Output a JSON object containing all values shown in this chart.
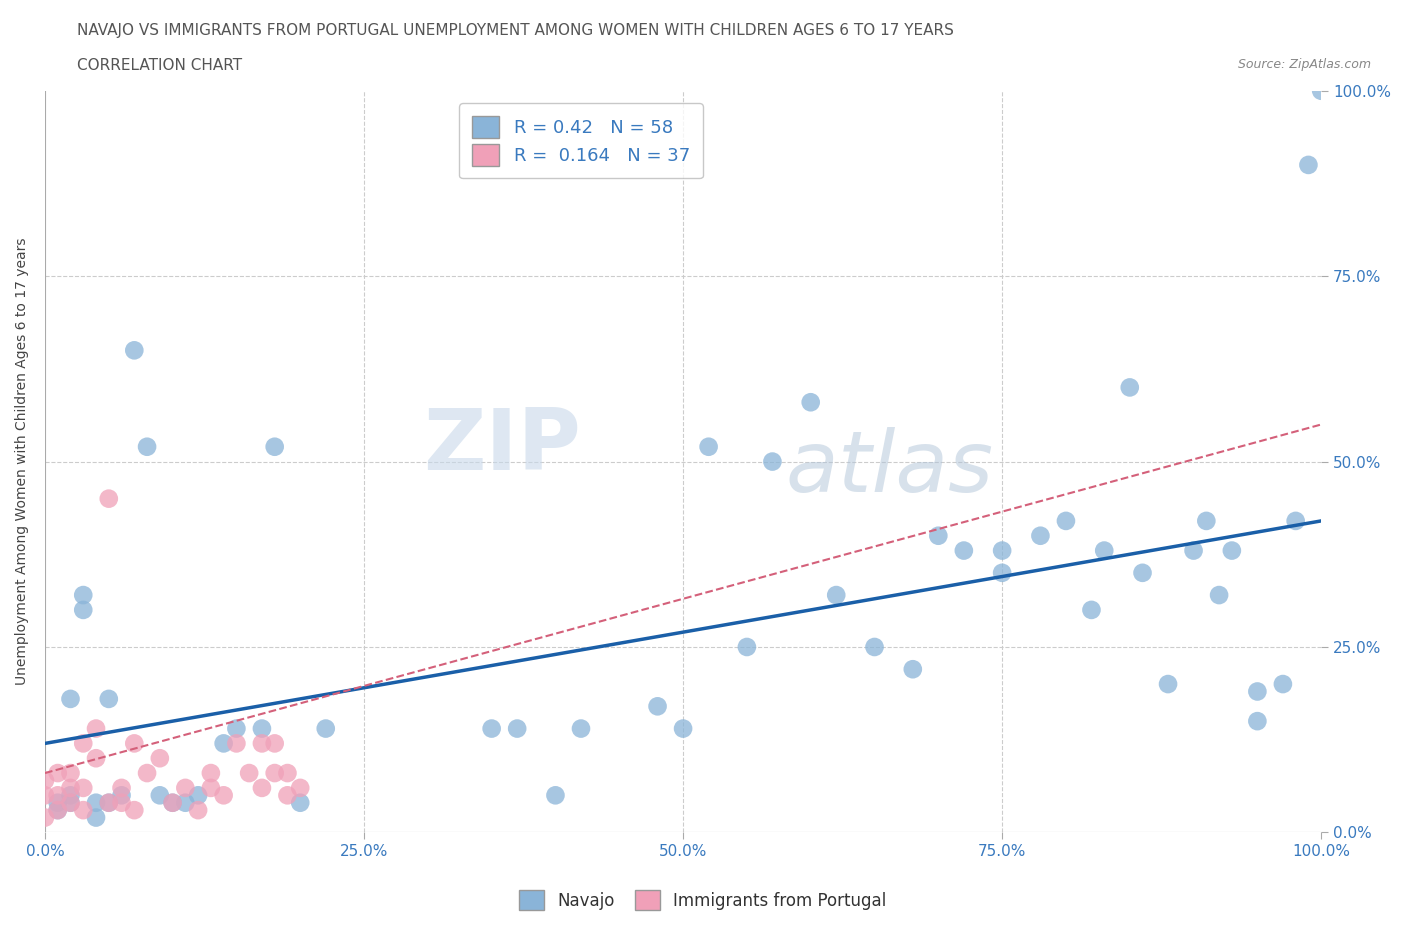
{
  "title_line1": "NAVAJO VS IMMIGRANTS FROM PORTUGAL UNEMPLOYMENT AMONG WOMEN WITH CHILDREN AGES 6 TO 17 YEARS",
  "title_line2": "CORRELATION CHART",
  "source": "Source: ZipAtlas.com",
  "ylabel": "Unemployment Among Women with Children Ages 6 to 17 years",
  "xlim": [
    0,
    1
  ],
  "ylim": [
    0,
    1
  ],
  "xticks": [
    0.0,
    0.25,
    0.5,
    0.75,
    1.0
  ],
  "yticks": [
    0.0,
    0.25,
    0.5,
    0.75,
    1.0
  ],
  "xticklabels": [
    "0.0%",
    "25.0%",
    "50.0%",
    "75.0%",
    "100.0%"
  ],
  "yticklabels": [
    "0.0%",
    "25.0%",
    "50.0%",
    "75.0%",
    "100.0%"
  ],
  "navajo_color": "#8ab4d8",
  "portugal_color": "#f0a0b8",
  "navajo_R": 0.42,
  "navajo_N": 58,
  "portugal_R": 0.164,
  "portugal_N": 37,
  "navajo_line_color": "#1a5fa8",
  "portugal_line_color": "#d4607a",
  "background_color": "#ffffff",
  "grid_color": "#cccccc",
  "navajo_line_y0": 0.12,
  "navajo_line_y1": 0.42,
  "portugal_line_y0": 0.08,
  "portugal_line_y1": 0.55,
  "navajo_x": [
    0.01,
    0.01,
    0.02,
    0.02,
    0.02,
    0.03,
    0.03,
    0.04,
    0.04,
    0.05,
    0.05,
    0.06,
    0.07,
    0.08,
    0.09,
    0.1,
    0.11,
    0.12,
    0.14,
    0.15,
    0.17,
    0.18,
    0.2,
    0.22,
    0.35,
    0.37,
    0.4,
    0.42,
    0.48,
    0.5,
    0.52,
    0.55,
    0.57,
    0.6,
    0.62,
    0.65,
    0.68,
    0.7,
    0.72,
    0.75,
    0.75,
    0.78,
    0.8,
    0.82,
    0.83,
    0.85,
    0.86,
    0.88,
    0.9,
    0.91,
    0.92,
    0.93,
    0.95,
    0.95,
    0.97,
    0.98,
    0.99,
    1.0
  ],
  "navajo_y": [
    0.03,
    0.04,
    0.04,
    0.05,
    0.18,
    0.3,
    0.32,
    0.02,
    0.04,
    0.04,
    0.18,
    0.05,
    0.65,
    0.52,
    0.05,
    0.04,
    0.04,
    0.05,
    0.12,
    0.14,
    0.14,
    0.52,
    0.04,
    0.14,
    0.14,
    0.14,
    0.05,
    0.14,
    0.17,
    0.14,
    0.52,
    0.25,
    0.5,
    0.58,
    0.32,
    0.25,
    0.22,
    0.4,
    0.38,
    0.35,
    0.38,
    0.4,
    0.42,
    0.3,
    0.38,
    0.6,
    0.35,
    0.2,
    0.38,
    0.42,
    0.32,
    0.38,
    0.15,
    0.19,
    0.2,
    0.42,
    0.9,
    1.0
  ],
  "portugal_x": [
    0.0,
    0.0,
    0.0,
    0.01,
    0.01,
    0.01,
    0.02,
    0.02,
    0.02,
    0.03,
    0.03,
    0.03,
    0.04,
    0.04,
    0.05,
    0.05,
    0.06,
    0.06,
    0.07,
    0.07,
    0.08,
    0.09,
    0.1,
    0.11,
    0.12,
    0.13,
    0.13,
    0.14,
    0.15,
    0.16,
    0.17,
    0.17,
    0.18,
    0.18,
    0.19,
    0.19,
    0.2
  ],
  "portugal_y": [
    0.02,
    0.05,
    0.07,
    0.03,
    0.05,
    0.08,
    0.04,
    0.06,
    0.08,
    0.03,
    0.06,
    0.12,
    0.1,
    0.14,
    0.45,
    0.04,
    0.04,
    0.06,
    0.03,
    0.12,
    0.08,
    0.1,
    0.04,
    0.06,
    0.03,
    0.06,
    0.08,
    0.05,
    0.12,
    0.08,
    0.06,
    0.12,
    0.08,
    0.12,
    0.05,
    0.08,
    0.06
  ],
  "watermark_zip": "ZIP",
  "watermark_atlas": "atlas",
  "legend_navajo": "Navajo",
  "legend_portugal": "Immigrants from Portugal"
}
